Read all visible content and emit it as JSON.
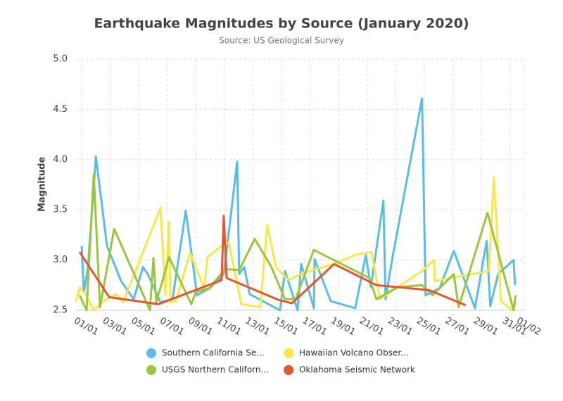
{
  "chart_data": {
    "type": "line",
    "title": "Earthquake Magnitudes by Source (January 2020)",
    "subtitle": "Source: US Geological Survey",
    "y_label": "Magnitude",
    "xlim": [
      0.6,
      32
    ],
    "xticks": [
      {
        "value": 1,
        "label": "01/01"
      },
      {
        "value": 3,
        "label": "03/01"
      },
      {
        "value": 5,
        "label": "05/01"
      },
      {
        "value": 7,
        "label": "07/01"
      },
      {
        "value": 9,
        "label": "09/01"
      },
      {
        "value": 11,
        "label": "11/01"
      },
      {
        "value": 13,
        "label": "13/01"
      },
      {
        "value": 15,
        "label": "15/01"
      },
      {
        "value": 17,
        "label": "17/01"
      },
      {
        "value": 19,
        "label": "19/01"
      },
      {
        "value": 21,
        "label": "21/01"
      },
      {
        "value": 23,
        "label": "23/01"
      },
      {
        "value": 25,
        "label": "25/01"
      },
      {
        "value": 27,
        "label": "27/01"
      },
      {
        "value": 29,
        "label": "29/01"
      },
      {
        "value": 31,
        "label": "31/01"
      },
      {
        "value": 32,
        "label": "01/02"
      }
    ],
    "ylim": [
      2.5,
      5.0
    ],
    "yticks": [
      2.5,
      {
        "value": 3,
        "label": "3.0"
      },
      3.5,
      {
        "value": 4,
        "label": "4.0"
      },
      4.5,
      {
        "value": 5,
        "label": "5.0"
      }
    ],
    "grid": true,
    "legend": "bottom",
    "series": [
      {
        "name": "Southern California Se...",
        "color": "#5bbde4",
        "x": [
          1.0,
          1.15,
          1.44,
          1.99,
          2.77,
          3.76,
          4.64,
          5.29,
          5.63,
          6.52,
          7.36,
          8.29,
          9.08,
          9.97,
          10.95,
          11.89,
          12.03,
          12.38,
          12.77,
          14.89,
          15.24,
          16.12,
          16.37,
          17.26,
          17.31,
          18.44,
          20.16,
          20.9,
          21.25,
          22.13,
          22.28,
          22.77,
          24.84,
          25.09,
          26.07,
          27.06,
          28.54,
          29.37,
          29.62,
          30.16,
          31.25,
          31.35
        ],
        "values": [
          3.14,
          2.68,
          2.93,
          4.03,
          3.14,
          2.79,
          2.61,
          2.93,
          2.86,
          2.58,
          2.61,
          3.49,
          2.65,
          2.72,
          2.86,
          3.98,
          2.86,
          2.93,
          2.66,
          2.5,
          2.89,
          2.5,
          2.96,
          2.52,
          3.01,
          2.59,
          2.52,
          3.05,
          2.73,
          3.59,
          2.61,
          3.03,
          4.61,
          2.65,
          2.72,
          3.09,
          2.52,
          3.19,
          2.54,
          2.86,
          3.0,
          2.75
        ]
      },
      {
        "name": "Hawaiian Volcano Obser...",
        "color": "#f7e84a",
        "x": [
          0.61,
          0.85,
          1.3,
          1.84,
          2.43,
          3.41,
          3.91,
          6.52,
          6.86,
          7.11,
          7.21,
          7.6,
          8.59,
          9.57,
          9.82,
          10.8,
          11.3,
          12.18,
          13.51,
          14.0,
          14.6,
          15.48,
          16.47,
          18.68,
          20.16,
          21.3,
          21.89,
          23.12,
          24.84,
          25.68,
          25.73,
          26.81,
          29.52,
          29.87,
          30.36,
          31.15,
          31.44
        ],
        "values": [
          2.59,
          2.73,
          2.65,
          2.5,
          2.58,
          2.66,
          2.58,
          3.52,
          2.65,
          3.38,
          2.58,
          2.59,
          3.07,
          2.72,
          3.03,
          3.14,
          3.17,
          2.56,
          2.53,
          3.35,
          2.93,
          2.8,
          2.87,
          2.96,
          3.05,
          3.08,
          2.61,
          2.73,
          2.89,
          3.0,
          2.79,
          2.82,
          2.89,
          3.82,
          2.59,
          2.5,
          2.58
        ]
      },
      {
        "name": "USGS Northern Californ...",
        "color": "#9bc53d",
        "x": [
          0.85,
          1.34,
          1.84,
          2.28,
          3.27,
          5.78,
          6.02,
          6.22,
          6.71,
          7.11,
          8.68,
          8.98,
          9.92,
          11.05,
          12.03,
          13.12,
          14.25,
          15.24,
          15.98,
          17.26,
          21.15,
          21.64,
          23.12,
          24.84,
          25.58,
          27.06,
          27.4,
          29.42,
          31.25,
          31.39
        ],
        "values": [
          2.65,
          2.5,
          3.85,
          2.53,
          3.31,
          2.5,
          3.02,
          2.58,
          2.82,
          3.03,
          2.56,
          2.68,
          2.72,
          2.91,
          2.9,
          3.21,
          2.94,
          2.61,
          2.61,
          3.1,
          2.82,
          2.61,
          2.73,
          2.75,
          2.65,
          2.86,
          2.53,
          3.47,
          2.5,
          2.65
        ]
      },
      {
        "name": "Oklahoma Seismic Network",
        "color": "#e4572e",
        "x": [
          0.85,
          2.92,
          6.37,
          10.8,
          10.95,
          11.15,
          14.84,
          15.73,
          18.68,
          21.64,
          25.33,
          27.9
        ],
        "values": [
          3.08,
          2.63,
          2.56,
          2.8,
          3.44,
          2.82,
          2.6,
          2.57,
          2.96,
          2.75,
          2.7,
          2.55
        ]
      }
    ]
  }
}
